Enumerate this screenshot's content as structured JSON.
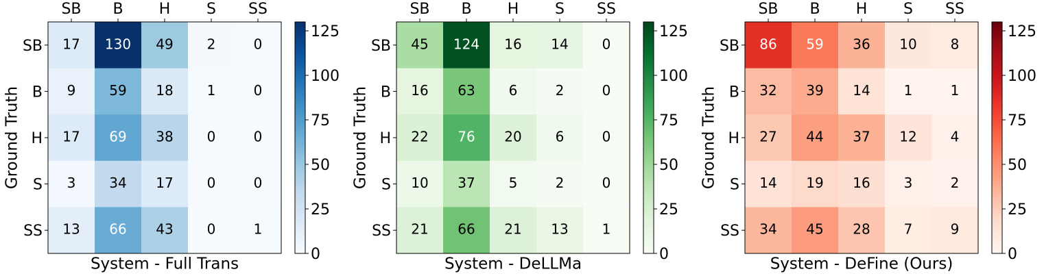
{
  "chart_data": [
    {
      "type": "heatmap",
      "colormap": "Blues",
      "xlabel": "System - Full Trans",
      "ylabel": "Ground Truth",
      "x_categories": [
        "SB",
        "B",
        "H",
        "S",
        "SS"
      ],
      "y_categories": [
        "SB",
        "B",
        "H",
        "S",
        "SS"
      ],
      "values": [
        [
          17,
          130,
          49,
          2,
          0
        ],
        [
          9,
          59,
          18,
          1,
          0
        ],
        [
          17,
          69,
          38,
          0,
          0
        ],
        [
          3,
          34,
          17,
          0,
          0
        ],
        [
          13,
          66,
          43,
          0,
          1
        ]
      ],
      "clim": [
        0,
        130
      ],
      "cticks": [
        0,
        25,
        50,
        75,
        100,
        125
      ]
    },
    {
      "type": "heatmap",
      "colormap": "Greens",
      "xlabel": "System - DeLLMa",
      "ylabel": "Ground Truth",
      "x_categories": [
        "SB",
        "B",
        "H",
        "S",
        "SS"
      ],
      "y_categories": [
        "SB",
        "B",
        "H",
        "S",
        "SS"
      ],
      "values": [
        [
          45,
          124,
          16,
          14,
          0
        ],
        [
          16,
          63,
          6,
          2,
          0
        ],
        [
          22,
          76,
          20,
          6,
          0
        ],
        [
          10,
          37,
          5,
          2,
          0
        ],
        [
          21,
          66,
          21,
          13,
          1
        ]
      ],
      "clim": [
        0,
        130
      ],
      "cticks": [
        0,
        25,
        50,
        75,
        100,
        125
      ]
    },
    {
      "type": "heatmap",
      "colormap": "Reds",
      "xlabel": "System - DeFine (Ours)",
      "ylabel": "Ground Truth",
      "x_categories": [
        "SB",
        "B",
        "H",
        "S",
        "SS"
      ],
      "y_categories": [
        "SB",
        "B",
        "H",
        "S",
        "SS"
      ],
      "values": [
        [
          86,
          59,
          36,
          10,
          8
        ],
        [
          32,
          39,
          14,
          1,
          1
        ],
        [
          27,
          44,
          37,
          12,
          4
        ],
        [
          14,
          19,
          16,
          3,
          2
        ],
        [
          34,
          45,
          28,
          7,
          9
        ]
      ],
      "clim": [
        0,
        130
      ],
      "cticks": [
        0,
        25,
        50,
        75,
        100,
        125
      ]
    }
  ]
}
